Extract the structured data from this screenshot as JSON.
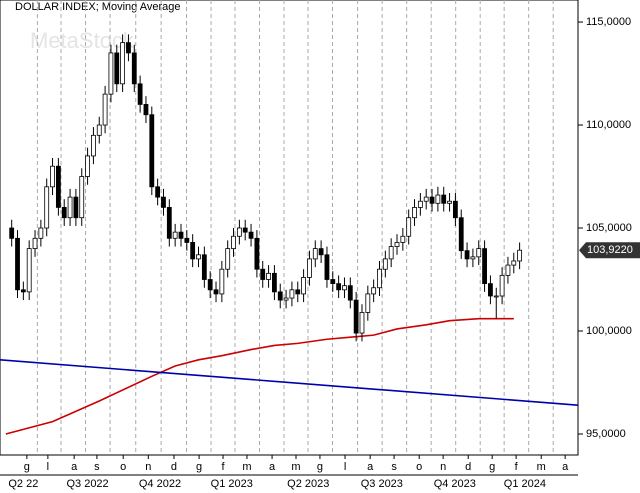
{
  "chart_data": {
    "type": "candlestick",
    "title": "DOLLAR INDEX; Moving Average",
    "watermark": "MetaStock",
    "xlim": [
      -1,
      98
    ],
    "ylim": [
      93.98,
      116.07
    ],
    "yticks": [
      {
        "value": 95,
        "label": "95,0000"
      },
      {
        "value": 100,
        "label": "100,0000"
      },
      {
        "value": 105,
        "label": "105,0000"
      },
      {
        "value": 110,
        "label": "110,0000"
      },
      {
        "value": 115,
        "label": "115,0000"
      }
    ],
    "xticks": [
      {
        "value": 3.6,
        "label": "g"
      },
      {
        "value": 7.2,
        "label": "l"
      },
      {
        "value": 11.7,
        "label": "a"
      },
      {
        "value": 15.6,
        "label": "s"
      },
      {
        "value": 20.1,
        "label": "o"
      },
      {
        "value": 24.4,
        "label": "n"
      },
      {
        "value": 28.8,
        "label": "d"
      },
      {
        "value": 33.1,
        "label": "g"
      },
      {
        "value": 37.2,
        "label": "f"
      },
      {
        "value": 41.3,
        "label": "m"
      },
      {
        "value": 45.6,
        "label": "a"
      },
      {
        "value": 49.7,
        "label": "m"
      },
      {
        "value": 53.8,
        "label": "g"
      },
      {
        "value": 58.1,
        "label": "l"
      },
      {
        "value": 62.4,
        "label": "a"
      },
      {
        "value": 66.5,
        "label": "s"
      },
      {
        "value": 70.8,
        "label": "o"
      },
      {
        "value": 74.9,
        "label": "n"
      },
      {
        "value": 79.2,
        "label": "d"
      },
      {
        "value": 83.3,
        "label": "g"
      },
      {
        "value": 87.4,
        "label": "f"
      },
      {
        "value": 91.7,
        "label": "m"
      },
      {
        "value": 95.8,
        "label": "a"
      }
    ],
    "quarters": [
      {
        "value": 3,
        "label": "Q2 22"
      },
      {
        "value": 14,
        "label": "Q3 2022"
      },
      {
        "value": 26.4,
        "label": "Q4 2022"
      },
      {
        "value": 38.7,
        "label": "Q1 2023"
      },
      {
        "value": 51.8,
        "label": "Q2 2023"
      },
      {
        "value": 64.4,
        "label": "Q3 2023"
      },
      {
        "value": 76.9,
        "label": "Q4 2023"
      },
      {
        "value": 88.9,
        "label": "Q1 2024"
      }
    ],
    "open": [
      105.0,
      104.5,
      102.0,
      101.9,
      104.0,
      104.5,
      105.0,
      107.0,
      108.0,
      106.0,
      105.5,
      106.5,
      105.5,
      107.5,
      108.5,
      109.5,
      110.0,
      111.5,
      113.5,
      112.0,
      114.0,
      113.5,
      112.0,
      111.0,
      110.5,
      107.0,
      106.5,
      106.0,
      104.5,
      104.8,
      104.5,
      104.3,
      103.5,
      103.7,
      102.5,
      102.0,
      101.8,
      103.0,
      104.0,
      104.6,
      105.0,
      104.8,
      104.5,
      103.0,
      102.5,
      102.8,
      101.9,
      101.5,
      101.6,
      102.0,
      101.8,
      102.6,
      103.5,
      104.0,
      103.7,
      102.5,
      102.3,
      102.0,
      102.2,
      101.5,
      99.9,
      100.9,
      101.8,
      102.1,
      103.0,
      103.5,
      104.1,
      104.3,
      104.6,
      105.5,
      106.0,
      106.3,
      106.5,
      106.2,
      106.6,
      106.2,
      106.3,
      105.5,
      103.9,
      103.5,
      103.6,
      104.0,
      102.3,
      101.7,
      101.7,
      102.7,
      103.2,
      103.4
    ],
    "high": [
      105.4,
      104.9,
      102.4,
      104.4,
      104.9,
      105.4,
      107.4,
      108.4,
      108.4,
      106.4,
      106.9,
      106.9,
      107.9,
      108.9,
      109.9,
      110.4,
      111.9,
      113.9,
      113.9,
      114.4,
      114.4,
      113.9,
      112.4,
      111.4,
      110.9,
      107.4,
      106.9,
      106.4,
      105.2,
      105.2,
      104.9,
      104.7,
      104.1,
      104.1,
      102.9,
      102.4,
      103.4,
      104.4,
      105.0,
      105.4,
      105.4,
      105.2,
      104.9,
      103.4,
      103.2,
      103.2,
      102.3,
      102.0,
      102.4,
      102.4,
      103.0,
      103.9,
      104.4,
      104.4,
      104.1,
      102.9,
      102.7,
      102.6,
      102.6,
      101.9,
      101.3,
      102.2,
      102.5,
      103.4,
      103.9,
      104.5,
      104.7,
      105.0,
      105.9,
      106.4,
      106.7,
      106.9,
      106.9,
      107.0,
      107.0,
      106.7,
      106.7,
      105.9,
      104.3,
      104.0,
      104.4,
      104.4,
      102.7,
      102.1,
      103.1,
      103.6,
      103.8,
      104.3
    ],
    "low": [
      104.1,
      101.6,
      101.5,
      101.5,
      103.6,
      104.1,
      104.6,
      106.6,
      105.6,
      105.1,
      105.1,
      105.1,
      105.1,
      107.1,
      108.1,
      109.1,
      109.6,
      111.1,
      111.6,
      111.6,
      113.1,
      111.6,
      110.6,
      110.1,
      106.6,
      106.1,
      105.6,
      104.1,
      104.1,
      104.1,
      103.9,
      103.1,
      103.1,
      102.1,
      101.6,
      101.4,
      101.4,
      102.6,
      103.6,
      104.2,
      104.4,
      104.1,
      102.6,
      102.1,
      102.1,
      101.5,
      101.1,
      101.1,
      101.2,
      101.4,
      101.4,
      102.2,
      103.1,
      103.3,
      102.1,
      101.9,
      101.6,
      101.6,
      101.1,
      99.5,
      99.5,
      100.5,
      101.4,
      101.7,
      102.6,
      103.1,
      103.7,
      103.9,
      104.2,
      105.1,
      105.6,
      105.9,
      105.8,
      105.8,
      105.8,
      105.8,
      105.1,
      103.5,
      103.1,
      103.1,
      103.2,
      101.9,
      101.3,
      100.6,
      101.3,
      102.3,
      102.8,
      103.0
    ],
    "close": [
      104.5,
      102.0,
      101.9,
      104.0,
      104.5,
      105.0,
      107.0,
      108.0,
      106.0,
      105.5,
      106.5,
      105.5,
      107.5,
      108.5,
      109.5,
      110.0,
      111.5,
      113.5,
      112.0,
      114.0,
      113.5,
      112.0,
      111.0,
      110.5,
      107.0,
      106.5,
      106.0,
      104.5,
      104.8,
      104.5,
      104.3,
      103.5,
      103.7,
      102.5,
      102.0,
      101.8,
      103.0,
      104.0,
      104.6,
      105.0,
      104.8,
      104.5,
      103.0,
      102.5,
      102.8,
      101.9,
      101.5,
      101.6,
      102.0,
      101.8,
      102.6,
      103.5,
      104.0,
      103.7,
      102.5,
      102.3,
      102.0,
      102.2,
      101.5,
      99.9,
      100.9,
      101.8,
      102.1,
      103.0,
      103.5,
      104.1,
      104.3,
      104.6,
      105.5,
      106.0,
      106.3,
      106.5,
      106.2,
      106.6,
      106.2,
      106.3,
      105.5,
      103.9,
      103.5,
      103.6,
      104.0,
      102.3,
      101.7,
      101.7,
      102.7,
      103.2,
      103.4,
      103.922
    ],
    "last_label": "103,9220",
    "up_color": "#ffffff",
    "down_color": "#000000",
    "lines": [
      {
        "color": "#cc0000",
        "x": [
          0,
          8,
          16,
          25,
          29,
          33,
          37,
          42,
          46,
          50,
          55,
          59,
          63,
          67,
          72,
          76,
          81,
          87
        ],
        "values": [
          95.0,
          95.6,
          96.6,
          97.8,
          98.3,
          98.6,
          98.8,
          99.1,
          99.3,
          99.4,
          99.6,
          99.7,
          99.8,
          100.1,
          100.3,
          100.5,
          100.6,
          100.6
        ]
      },
      {
        "color": "#0000aa",
        "x": [
          -1,
          98
        ],
        "values": [
          98.6,
          96.4
        ]
      }
    ]
  }
}
